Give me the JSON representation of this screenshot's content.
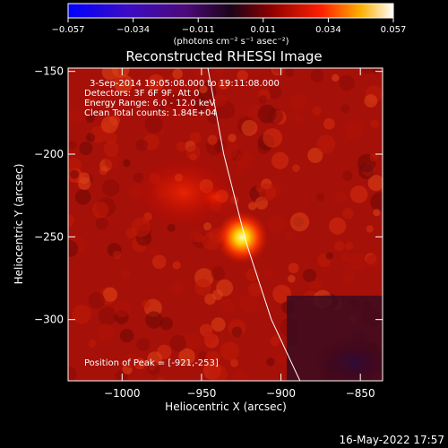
{
  "colorbar": {
    "ticks": [
      "−0.057",
      "−0.034",
      "−0.011",
      "0.011",
      "0.034",
      "0.057"
    ],
    "units_html": "(photons cm⁻² s⁻¹ asec⁻²)",
    "vmin": -0.057,
    "vmax": 0.057
  },
  "chart_data": {
    "type": "heatmap",
    "title": "Reconstructed RHESSI Image",
    "xlabel": "Heliocentric X (arcsec)",
    "ylabel": "Heliocentric Y (arcsec)",
    "xlim": [
      -1034,
      -836
    ],
    "ylim": [
      -337,
      -148
    ],
    "x_ticks": [
      -1000,
      -950,
      -900,
      -850
    ],
    "y_ticks": [
      -150,
      -200,
      -250,
      -300
    ],
    "x_tick_labels": [
      "−1000",
      "−950",
      "−900",
      "−850"
    ],
    "y_tick_labels": [
      "−150",
      "−200",
      "−250",
      "−300"
    ],
    "annotations": [
      "3-Sep-2014 19:05:08.000 to 19:11:08.000",
      "Detectors: 3F 6F 9F, Att 0",
      "Energy Range: 6.0 - 12.0 keV",
      "Clean     Total counts: 1.84E+04"
    ],
    "peak_label": "Position of Peak = [-921,-253]",
    "peak": [
      -921,
      -253
    ],
    "limb": [
      [
        -946,
        -148
      ],
      [
        -936,
        -200
      ],
      [
        -922,
        -253
      ],
      [
        -906,
        -300
      ],
      [
        -888,
        -337
      ]
    ]
  },
  "timestamp": "16-May-2022 17:57"
}
